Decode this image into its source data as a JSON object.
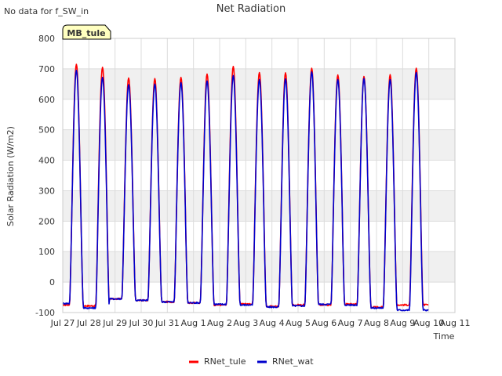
{
  "no_data_note": "No data for f_SW_in",
  "site_badge": "MB_tule",
  "chart_data": {
    "type": "line",
    "title": "Net Radiation",
    "xlabel": "Time",
    "ylabel": "Solar Radiation (W/m2)",
    "ylim": [
      -100,
      800
    ],
    "yticks": [
      -100,
      0,
      100,
      200,
      300,
      400,
      500,
      600,
      700,
      800
    ],
    "xlim": [
      "2023-07-27",
      "2023-08-11"
    ],
    "xtick_labels": [
      "Jul 27",
      "Jul 28",
      "Jul 29",
      "Jul 30",
      "Jul 31",
      "Aug 1",
      "Aug 2",
      "Aug 3",
      "Aug 4",
      "Aug 5",
      "Aug 6",
      "Aug 7",
      "Aug 8",
      "Aug 9",
      "Aug 10",
      "Aug 11"
    ],
    "grid": true,
    "background_bands": true,
    "legend": "bottom-center",
    "series": [
      {
        "name": "RNet_tule",
        "color": "#ff0000",
        "daily_peaks": [
          {
            "date": "2023-07-27",
            "peak": 715,
            "night": -75
          },
          {
            "date": "2023-07-28",
            "peak": 705,
            "night": -78
          },
          {
            "date": "2023-07-29",
            "peak": 670,
            "night": -55
          },
          {
            "date": "2023-07-30",
            "peak": 668,
            "night": -60
          },
          {
            "date": "2023-07-31",
            "peak": 672,
            "night": -65
          },
          {
            "date": "2023-08-01",
            "peak": 683,
            "night": -68
          },
          {
            "date": "2023-08-02",
            "peak": 708,
            "night": -75
          },
          {
            "date": "2023-08-03",
            "peak": 688,
            "night": -72
          },
          {
            "date": "2023-08-04",
            "peak": 687,
            "night": -80
          },
          {
            "date": "2023-08-05",
            "peak": 702,
            "night": -75
          },
          {
            "date": "2023-08-06",
            "peak": 680,
            "night": -75
          },
          {
            "date": "2023-08-07",
            "peak": 675,
            "night": -72
          },
          {
            "date": "2023-08-08",
            "peak": 681,
            "night": -82
          },
          {
            "date": "2023-08-09",
            "peak": 702,
            "night": -75
          }
        ]
      },
      {
        "name": "RNet_wat",
        "color": "#0000cc",
        "daily_peaks": [
          {
            "date": "2023-07-27",
            "peak": 695,
            "night": -70
          },
          {
            "date": "2023-07-28",
            "peak": 672,
            "night": -85
          },
          {
            "date": "2023-07-29",
            "peak": 648,
            "night": -55
          },
          {
            "date": "2023-07-30",
            "peak": 650,
            "night": -60
          },
          {
            "date": "2023-07-31",
            "peak": 655,
            "night": -65
          },
          {
            "date": "2023-08-01",
            "peak": 660,
            "night": -68
          },
          {
            "date": "2023-08-02",
            "peak": 678,
            "night": -73
          },
          {
            "date": "2023-08-03",
            "peak": 665,
            "night": -75
          },
          {
            "date": "2023-08-04",
            "peak": 667,
            "night": -82
          },
          {
            "date": "2023-08-05",
            "peak": 690,
            "night": -78
          },
          {
            "date": "2023-08-06",
            "peak": 665,
            "night": -73
          },
          {
            "date": "2023-08-07",
            "peak": 668,
            "night": -75
          },
          {
            "date": "2023-08-08",
            "peak": 665,
            "night": -85
          },
          {
            "date": "2023-08-09",
            "peak": 688,
            "night": -92
          }
        ]
      }
    ]
  }
}
